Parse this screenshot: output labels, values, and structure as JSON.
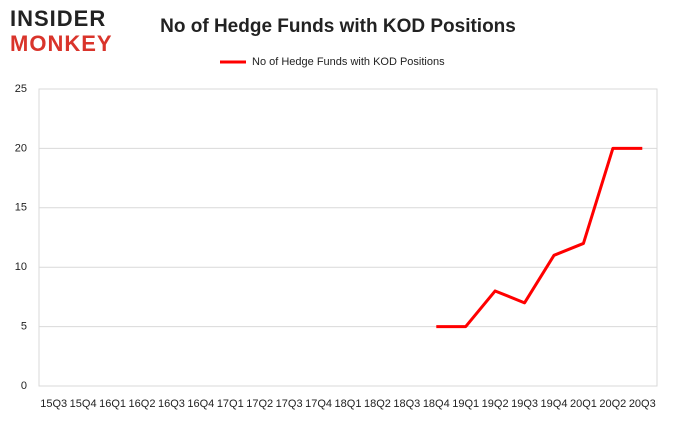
{
  "logo": {
    "line1": "INSIDER",
    "line2": "MONKEY"
  },
  "chart_data": {
    "type": "line",
    "title": "No of Hedge Funds with KOD Positions",
    "categories": [
      "15Q3",
      "15Q4",
      "16Q1",
      "16Q2",
      "16Q3",
      "16Q4",
      "17Q1",
      "17Q2",
      "17Q3",
      "17Q4",
      "18Q1",
      "18Q2",
      "18Q3",
      "18Q4",
      "19Q1",
      "19Q2",
      "19Q3",
      "19Q4",
      "20Q1",
      "20Q2",
      "20Q3"
    ],
    "series": [
      {
        "name": "No of Hedge Funds with KOD Positions",
        "color": "#ff0000",
        "values": [
          null,
          null,
          null,
          null,
          null,
          null,
          null,
          null,
          null,
          null,
          null,
          null,
          null,
          5,
          5,
          8,
          7,
          11,
          12,
          20,
          20
        ]
      }
    ],
    "ylim": [
      0,
      25
    ],
    "yticks": [
      0,
      5,
      10,
      15,
      20,
      25
    ],
    "grid": true,
    "legend": "top"
  }
}
